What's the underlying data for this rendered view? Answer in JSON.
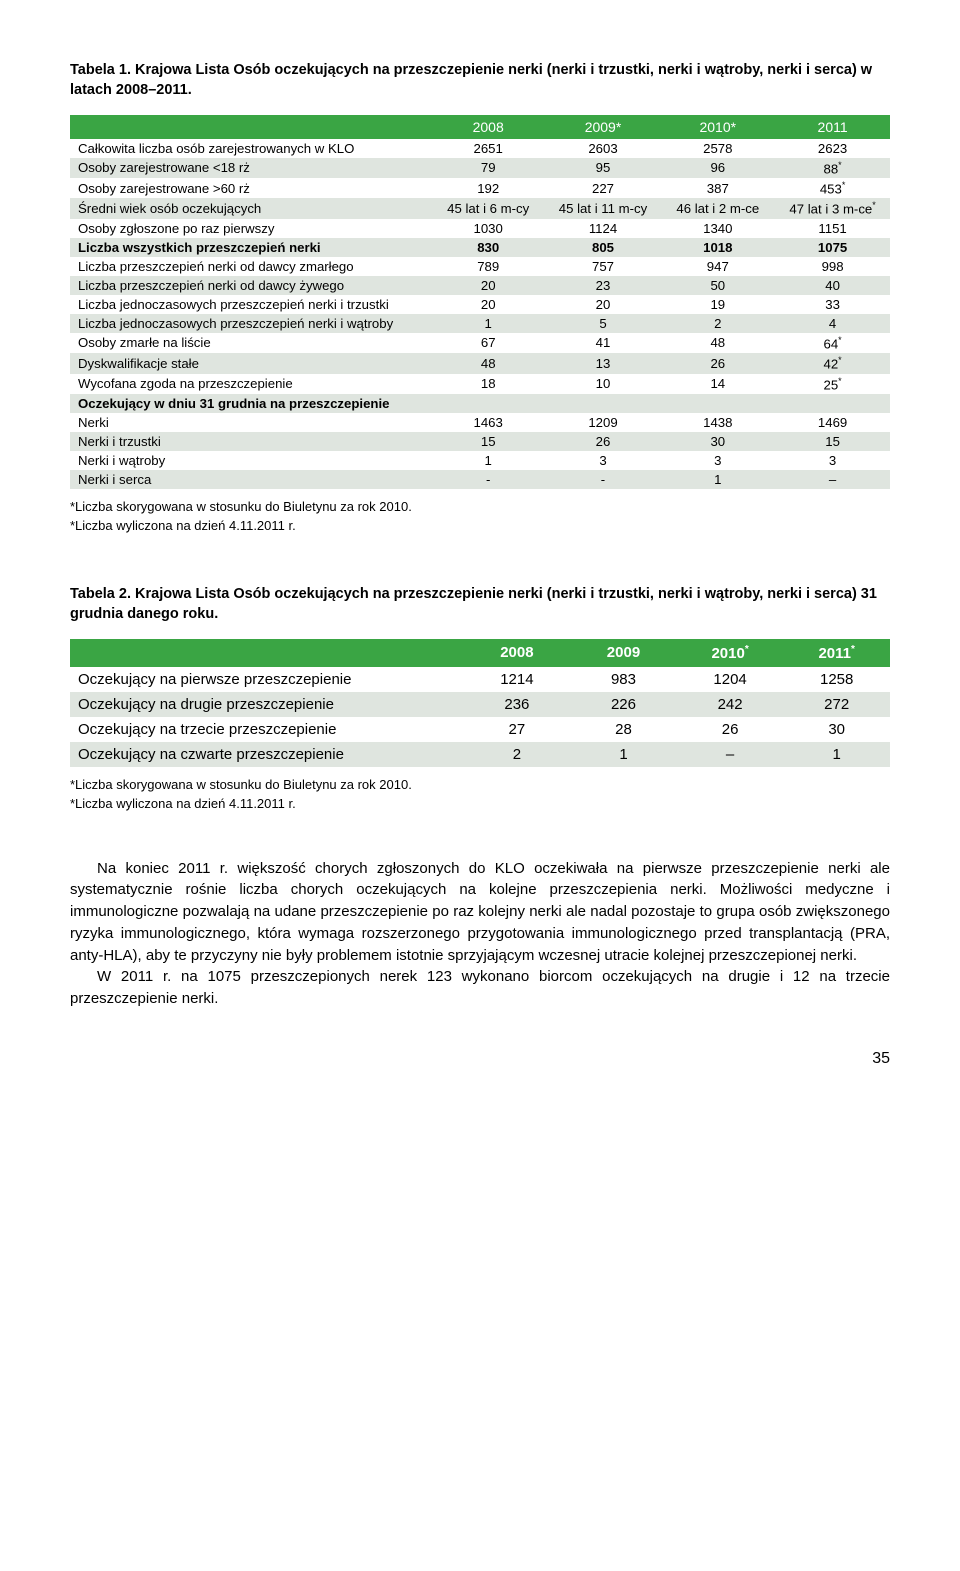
{
  "colors": {
    "header_bg": "#3aa544",
    "header_text": "#ffffff",
    "shade_bg": "#dfe5df",
    "text": "#000000",
    "page_bg": "#ffffff"
  },
  "table1": {
    "caption": "Tabela 1. Krajowa Lista Osób oczekujących na przeszczepienie nerki (nerki i trzustki, nerki i wątroby, nerki i serca) w latach 2008–2011.",
    "headers": [
      "2008",
      "2009*",
      "2010*",
      "2011"
    ],
    "rows": [
      {
        "label": "Całkowita liczba osób zarejestrowanych w KLO",
        "v": [
          "2651",
          "2603",
          "2578",
          "2623"
        ],
        "shade": false
      },
      {
        "label": "Osoby zarejestrowane <18 rż",
        "v": [
          "79",
          "95",
          "96",
          "88*"
        ],
        "shade": true
      },
      {
        "label": "Osoby zarejestrowane >60 rż",
        "v": [
          "192",
          "227",
          "387",
          "453*"
        ],
        "shade": false
      },
      {
        "label": "Średni wiek osób oczekujących",
        "v": [
          "45 lat i 6 m-cy",
          "45 lat i 11 m-cy",
          "46 lat i 2 m-ce",
          "47 lat i 3 m-ce*"
        ],
        "shade": true
      },
      {
        "label": "Osoby zgłoszone po raz pierwszy",
        "v": [
          "1030",
          "1124",
          "1340",
          "1151"
        ],
        "shade": false
      },
      {
        "label": "Liczba wszystkich przeszczepień nerki",
        "v": [
          "830",
          "805",
          "1018",
          "1075"
        ],
        "shade": true,
        "bold": true
      },
      {
        "label": "Liczba przeszczepień nerki od dawcy zmarłego",
        "v": [
          "789",
          "757",
          "947",
          "998"
        ],
        "shade": false
      },
      {
        "label": "Liczba przeszczepień nerki od dawcy żywego",
        "v": [
          "20",
          "23",
          "50",
          "40"
        ],
        "shade": true
      },
      {
        "label": "Liczba jednoczasowych przeszczepień nerki i trzustki",
        "v": [
          "20",
          "20",
          "19",
          "33"
        ],
        "shade": false
      },
      {
        "label": "Liczba jednoczasowych przeszczepień nerki i wątroby",
        "v": [
          "1",
          "5",
          "2",
          "4"
        ],
        "shade": true
      },
      {
        "label": "Osoby zmarłe na liście",
        "v": [
          "67",
          "41",
          "48",
          "64*"
        ],
        "shade": false
      },
      {
        "label": "Dyskwalifikacje stałe",
        "v": [
          "48",
          "13",
          "26",
          "42*"
        ],
        "shade": true
      },
      {
        "label": "Wycofana zgoda na przeszczepienie",
        "v": [
          "18",
          "10",
          "14",
          "25*"
        ],
        "shade": false
      },
      {
        "label": "Oczekujący w dniu 31 grudnia na przeszczepienie",
        "v": [
          "",
          "",
          "",
          ""
        ],
        "shade": true,
        "bold": true
      },
      {
        "label": "Nerki",
        "v": [
          "1463",
          "1209",
          "1438",
          "1469"
        ],
        "shade": false
      },
      {
        "label": "Nerki i trzustki",
        "v": [
          "15",
          "26",
          "30",
          "15"
        ],
        "shade": true
      },
      {
        "label": "Nerki i wątroby",
        "v": [
          "1",
          "3",
          "3",
          "3"
        ],
        "shade": false
      },
      {
        "label": "Nerki i serca",
        "v": [
          "-",
          "-",
          "1",
          "–"
        ],
        "shade": true
      }
    ],
    "footnotes": [
      "*Liczba skorygowana w stosunku do Biuletynu za rok 2010.",
      "*Liczba wyliczona na dzień 4.11.2011 r."
    ]
  },
  "table2": {
    "caption": "Tabela 2. Krajowa Lista Osób oczekujących na przeszczepienie nerki (nerki i trzustki, nerki i wątroby, nerki i serca) 31 grudnia danego roku.",
    "headers": [
      "2008",
      "2009",
      "2010*",
      "2011*"
    ],
    "rows": [
      {
        "label": "Oczekujący na pierwsze przeszczepienie",
        "v": [
          "1214",
          "983",
          "1204",
          "1258"
        ],
        "shade": false
      },
      {
        "label": "Oczekujący na drugie przeszczepienie",
        "v": [
          "236",
          "226",
          "242",
          "272"
        ],
        "shade": true
      },
      {
        "label": "Oczekujący na trzecie przeszczepienie",
        "v": [
          "27",
          "28",
          "26",
          "30"
        ],
        "shade": false
      },
      {
        "label": "Oczekujący na czwarte przeszczepienie",
        "v": [
          "2",
          "1",
          "–",
          "1"
        ],
        "shade": true
      }
    ],
    "footnotes": [
      "*Liczba skorygowana w stosunku do Biuletynu za rok 2010.",
      "*Liczba wyliczona na dzień 4.11.2011 r."
    ]
  },
  "paragraphs": [
    "Na koniec 2011 r. większość chorych zgłoszonych do KLO oczekiwała na pierwsze przeszczepienie nerki ale systematycznie rośnie liczba chorych oczekujących na kolejne przeszczepienia nerki. Możliwości medyczne i immunologiczne pozwalają na udane przeszczepienie po raz kolejny nerki ale nadal pozostaje to grupa osób zwiększonego ryzyka immunologicznego, która wymaga rozszerzonego przygotowania immunologicznego przed transplantacją (PRA, anty-HLA), aby te przyczyny nie były problemem istotnie sprzyjającym wczesnej utracie kolejnej przeszczepionej nerki.",
    "W 2011 r. na 1075 przeszczepionych nerek 123 wykonano biorcom oczekujących na drugie i 12 na trzecie przeszczepienie nerki."
  ],
  "page_number": "35"
}
